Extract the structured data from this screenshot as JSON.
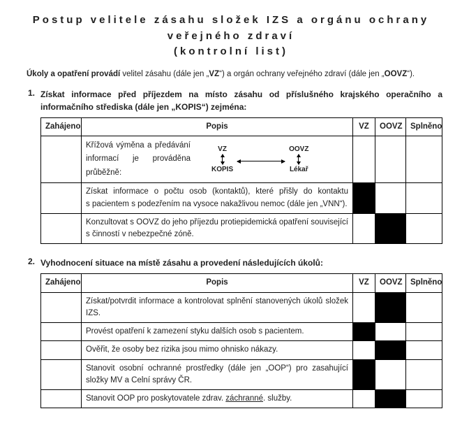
{
  "title_line1": "Postup velitele zásahu složek IZS a orgánu ochrany",
  "title_line2": "veřejného zdraví",
  "title_line3": "(kontrolní list)",
  "intro_prefix": "Úkoly a opatření provádí",
  "intro_rest": " velitel zásahu (dále jen „",
  "intro_vz": "VZ",
  "intro_mid": "“) a orgán ochrany veřejného zdraví (dále jen „",
  "intro_oovz": "OOVZ",
  "intro_end": "“).",
  "headers": {
    "start": "Zahájeno",
    "desc": "Popis",
    "vz": "VZ",
    "oovz": "OOVZ",
    "done": "Splněno"
  },
  "section1": {
    "num": "1.",
    "text": "Získat informace před příjezdem na místo zásahu od příslušného krajského operačního a informačního střediska (dále jen „KOPIS“) zejména:",
    "rows": [
      {
        "desc_pre": "Křížová výměna a předávání informací je prováděna průběžně:",
        "diagram": {
          "tl": "VZ",
          "tr": "OOVZ",
          "bl": "KOPIS",
          "br": "Lékař"
        },
        "vz": false,
        "oovz": false
      },
      {
        "desc": "Získat informace o počtu osob (kontaktů), které přišly do kontaktu s pacientem s podezřením na vysoce nakažlivou nemoc (dále jen „VNN“).",
        "vz": true,
        "oovz": false
      },
      {
        "desc": "Konzultovat s OOVZ do jeho příjezdu protiepidemická opatření související s činností v nebezpečné zóně.",
        "vz": false,
        "oovz": true
      }
    ]
  },
  "section2": {
    "num": "2.",
    "text": "Vyhodnocení situace na místě zásahu a provedení následujících úkolů:",
    "rows": [
      {
        "desc": "Získat/potvrdit informace a kontrolovat splnění stanovených úkolů složek IZS.",
        "vz": false,
        "oovz": true
      },
      {
        "desc": "Provést opatření k zamezení styku dalších osob s pacientem.",
        "vz": true,
        "oovz": false
      },
      {
        "desc": "Ověřit, že osoby bez rizika jsou mimo ohnisko nákazy.",
        "vz": false,
        "oovz": true
      },
      {
        "desc": "Stanovit osobní ochranné prostředky (dále jen „OOP“) pro zasahující složky MV a Celní správy ČR.",
        "vz": true,
        "oovz": false
      },
      {
        "desc_html": "Stanovit OOP pro poskytovatele zdrav. <span class=\"underline\">záchranné</span>. služby.",
        "vz": false,
        "oovz": true
      }
    ]
  }
}
